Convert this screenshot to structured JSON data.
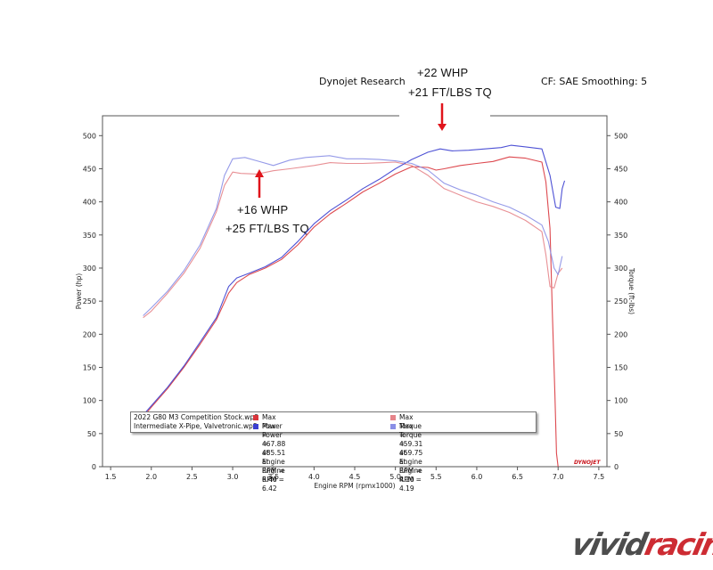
{
  "header": {
    "left": "Dynojet Research",
    "right": "CF: SAE Smoothing: 5"
  },
  "annotations": [
    {
      "line1": "+22 WHP",
      "line2": "+21 FT/LBS TQ"
    },
    {
      "line1": "+16 WHP",
      "line2": "+25 FT/LBS TQ"
    }
  ],
  "legend": {
    "rows": [
      {
        "run": "2022 G80 M3 Competition Stock.wp8",
        "power": "Max Power = 467.88 at Engine RPM = 6.40",
        "torque": "Max Torque = 459.31 at Engine RPM = 4.20"
      },
      {
        "run": "Intermediate X-Pipe, Valvetronic.wp8",
        "power": "Max Power = 485.51 at Engine RPM = 6.42",
        "torque": "Max Torque = 469.75 at Engine RPM = 4.19"
      }
    ]
  },
  "brand": {
    "dynojet": "DYNOJET",
    "watermark": "vividracing"
  },
  "colors": {
    "stock_power": "#d9353c",
    "stock_torque": "#e6848a",
    "xpipe_power": "#3b3fd0",
    "xpipe_torque": "#8a8fe6",
    "arrow": "#e0141b",
    "watermark_dark": "#3a3a3a",
    "watermark_red": "#c8161d"
  },
  "chart_data": {
    "type": "line",
    "xlabel": "Engine RPM (rpmx1000)",
    "ylabel": "Power (hp)",
    "y2label": "Torque (ft-lbs)",
    "xlim": [
      1.4,
      7.6
    ],
    "ylim": [
      0,
      530
    ],
    "y2lim": [
      0,
      530
    ],
    "x_ticks": [
      1.5,
      2.0,
      2.5,
      3.0,
      3.5,
      4.0,
      4.5,
      5.0,
      5.5,
      6.0,
      6.5,
      7.0,
      7.5
    ],
    "y_ticks": [
      0,
      50,
      100,
      150,
      200,
      250,
      300,
      350,
      400,
      450,
      500
    ],
    "y2_ticks": [
      0,
      50,
      100,
      150,
      200,
      250,
      300,
      350,
      400,
      450,
      500
    ],
    "grid": false,
    "legend_position": "bottom-left",
    "series": [
      {
        "name": "2022 G80 M3 Competition Stock.wp8 Power",
        "color": "#d9353c",
        "points": [
          [
            1.9,
            75
          ],
          [
            2.0,
            90
          ],
          [
            2.2,
            118
          ],
          [
            2.4,
            150
          ],
          [
            2.6,
            185
          ],
          [
            2.8,
            222
          ],
          [
            2.95,
            262
          ],
          [
            3.05,
            278
          ],
          [
            3.2,
            290
          ],
          [
            3.4,
            300
          ],
          [
            3.6,
            313
          ],
          [
            3.8,
            335
          ],
          [
            4.0,
            362
          ],
          [
            4.2,
            382
          ],
          [
            4.4,
            398
          ],
          [
            4.6,
            415
          ],
          [
            4.8,
            428
          ],
          [
            5.0,
            442
          ],
          [
            5.2,
            453
          ],
          [
            5.4,
            452
          ],
          [
            5.5,
            448
          ],
          [
            5.6,
            450
          ],
          [
            5.8,
            455
          ],
          [
            6.0,
            458
          ],
          [
            6.2,
            461
          ],
          [
            6.4,
            467.88
          ],
          [
            6.6,
            466
          ],
          [
            6.8,
            460
          ],
          [
            6.85,
            430
          ],
          [
            6.9,
            360
          ],
          [
            6.93,
            230
          ],
          [
            6.96,
            110
          ],
          [
            6.98,
            20
          ],
          [
            7.0,
            0
          ]
        ]
      },
      {
        "name": "2022 G80 M3 Competition Stock.wp8 Torque",
        "color": "#e6848a",
        "points": [
          [
            1.9,
            225
          ],
          [
            2.0,
            235
          ],
          [
            2.2,
            262
          ],
          [
            2.4,
            292
          ],
          [
            2.6,
            330
          ],
          [
            2.8,
            385
          ],
          [
            2.9,
            425
          ],
          [
            3.0,
            445
          ],
          [
            3.1,
            443
          ],
          [
            3.3,
            442
          ],
          [
            3.5,
            447
          ],
          [
            3.7,
            450
          ],
          [
            4.0,
            455
          ],
          [
            4.2,
            459.31
          ],
          [
            4.4,
            458
          ],
          [
            4.6,
            458
          ],
          [
            4.8,
            459
          ],
          [
            5.0,
            460
          ],
          [
            5.2,
            455
          ],
          [
            5.4,
            440
          ],
          [
            5.6,
            420
          ],
          [
            5.8,
            410
          ],
          [
            6.0,
            400
          ],
          [
            6.2,
            393
          ],
          [
            6.4,
            384
          ],
          [
            6.6,
            372
          ],
          [
            6.8,
            355
          ],
          [
            6.85,
            320
          ],
          [
            6.9,
            272
          ],
          [
            6.95,
            270
          ],
          [
            7.0,
            292
          ],
          [
            7.05,
            300
          ]
        ]
      },
      {
        "name": "Intermediate X-Pipe, Valvetronic.wp8 Power",
        "color": "#3b3fd0",
        "points": [
          [
            1.9,
            78
          ],
          [
            2.0,
            92
          ],
          [
            2.2,
            120
          ],
          [
            2.4,
            152
          ],
          [
            2.6,
            188
          ],
          [
            2.8,
            225
          ],
          [
            2.95,
            272
          ],
          [
            3.05,
            285
          ],
          [
            3.2,
            292
          ],
          [
            3.4,
            302
          ],
          [
            3.6,
            316
          ],
          [
            3.8,
            340
          ],
          [
            4.0,
            367
          ],
          [
            4.2,
            387
          ],
          [
            4.4,
            403
          ],
          [
            4.6,
            420
          ],
          [
            4.8,
            434
          ],
          [
            5.0,
            450
          ],
          [
            5.2,
            464
          ],
          [
            5.4,
            475
          ],
          [
            5.55,
            480
          ],
          [
            5.7,
            477
          ],
          [
            5.9,
            478
          ],
          [
            6.1,
            480
          ],
          [
            6.3,
            482
          ],
          [
            6.42,
            485.51
          ],
          [
            6.6,
            483
          ],
          [
            6.8,
            480
          ],
          [
            6.9,
            440
          ],
          [
            6.97,
            392
          ],
          [
            7.02,
            390
          ],
          [
            7.05,
            420
          ],
          [
            7.08,
            432
          ]
        ]
      },
      {
        "name": "Intermediate X-Pipe, Valvetronic.wp8 Torque",
        "color": "#8a8fe6",
        "points": [
          [
            1.9,
            228
          ],
          [
            2.0,
            240
          ],
          [
            2.2,
            265
          ],
          [
            2.4,
            296
          ],
          [
            2.6,
            335
          ],
          [
            2.8,
            390
          ],
          [
            2.9,
            440
          ],
          [
            3.0,
            465
          ],
          [
            3.15,
            467
          ],
          [
            3.3,
            462
          ],
          [
            3.5,
            455
          ],
          [
            3.7,
            463
          ],
          [
            3.9,
            467
          ],
          [
            4.19,
            469.75
          ],
          [
            4.4,
            465
          ],
          [
            4.6,
            465
          ],
          [
            4.8,
            464
          ],
          [
            5.0,
            462
          ],
          [
            5.2,
            458
          ],
          [
            5.4,
            448
          ],
          [
            5.6,
            428
          ],
          [
            5.8,
            418
          ],
          [
            6.0,
            410
          ],
          [
            6.2,
            400
          ],
          [
            6.4,
            392
          ],
          [
            6.6,
            380
          ],
          [
            6.8,
            365
          ],
          [
            6.88,
            340
          ],
          [
            6.95,
            300
          ],
          [
            7.0,
            290
          ],
          [
            7.05,
            318
          ]
        ]
      }
    ]
  }
}
